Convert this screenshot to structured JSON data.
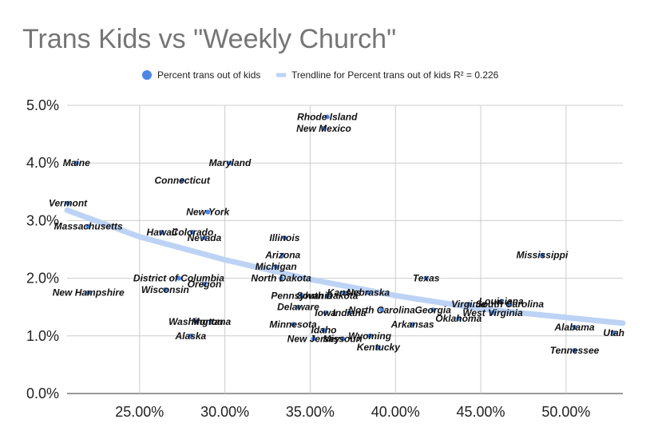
{
  "title": "Trans Kids vs \"Weekly Church\"",
  "legend": {
    "points_label": "Percent trans out of kids",
    "trend_label": "Trendline for Percent trans out of kids R² = 0.226"
  },
  "colors": {
    "points": "#4a86e8",
    "trend": "#bcd3f5",
    "title": "#757575"
  },
  "chart_data": {
    "type": "scatter",
    "title": "Trans Kids vs \"Weekly Church\"",
    "xlabel": "",
    "ylabel": "",
    "xlim": [
      0.2075,
      0.5333
    ],
    "ylim": [
      0,
      0.05
    ],
    "x_ticks": [
      0.25,
      0.3,
      0.35,
      0.4,
      0.45,
      0.5
    ],
    "x_tick_labels": [
      "25.00%",
      "30.00%",
      "35.00%",
      "40.00%",
      "45.00%",
      "50.00%"
    ],
    "y_ticks": [
      0,
      0.01,
      0.02,
      0.03,
      0.04,
      0.05
    ],
    "y_tick_labels": [
      "0.0%",
      "1.0%",
      "2.0%",
      "3.0%",
      "4.0%",
      "5.0%"
    ],
    "grid": true,
    "legend_position": "top",
    "series": [
      {
        "name": "Percent trans out of kids",
        "points": [
          {
            "label": "Rhode Island",
            "x": 0.36,
            "y": 0.048
          },
          {
            "label": "New Mexico",
            "x": 0.358,
            "y": 0.046
          },
          {
            "label": "Maine",
            "x": 0.213,
            "y": 0.04
          },
          {
            "label": "Maryland",
            "x": 0.303,
            "y": 0.04
          },
          {
            "label": "Connecticut",
            "x": 0.275,
            "y": 0.037
          },
          {
            "label": "Vermont",
            "x": 0.208,
            "y": 0.033
          },
          {
            "label": "New York",
            "x": 0.29,
            "y": 0.0315
          },
          {
            "label": "Massachusetts",
            "x": 0.22,
            "y": 0.029
          },
          {
            "label": "Hawaii",
            "x": 0.263,
            "y": 0.028
          },
          {
            "label": "Colorado",
            "x": 0.281,
            "y": 0.028
          },
          {
            "label": "Nevada",
            "x": 0.288,
            "y": 0.027
          },
          {
            "label": "Illinois",
            "x": 0.335,
            "y": 0.027
          },
          {
            "label": "Arizona",
            "x": 0.334,
            "y": 0.024
          },
          {
            "label": "Michigan",
            "x": 0.33,
            "y": 0.022
          },
          {
            "label": "Mississippi",
            "x": 0.486,
            "y": 0.024
          },
          {
            "label": "District of Columbia",
            "x": 0.273,
            "y": 0.02
          },
          {
            "label": "Oregon",
            "x": 0.288,
            "y": 0.019
          },
          {
            "label": "North Dakota",
            "x": 0.333,
            "y": 0.02
          },
          {
            "label": "Wisconsin",
            "x": 0.265,
            "y": 0.018
          },
          {
            "label": "New Hampshire",
            "x": 0.22,
            "y": 0.0175
          },
          {
            "label": "Texas",
            "x": 0.418,
            "y": 0.02
          },
          {
            "label": "Kansas",
            "x": 0.37,
            "y": 0.0175
          },
          {
            "label": "Nebraska",
            "x": 0.384,
            "y": 0.0175
          },
          {
            "label": "Pennsylvania",
            "x": 0.345,
            "y": 0.017
          },
          {
            "label": "South Dakota",
            "x": 0.36,
            "y": 0.017
          },
          {
            "label": "Louisiana",
            "x": 0.462,
            "y": 0.016
          },
          {
            "label": "Delaware",
            "x": 0.343,
            "y": 0.015
          },
          {
            "label": "Virginia",
            "x": 0.443,
            "y": 0.0155
          },
          {
            "label": "South Carolina",
            "x": 0.467,
            "y": 0.0155
          },
          {
            "label": "North Carolina",
            "x": 0.392,
            "y": 0.0145
          },
          {
            "label": "Georgia",
            "x": 0.422,
            "y": 0.0145
          },
          {
            "label": "Iowa",
            "x": 0.359,
            "y": 0.014
          },
          {
            "label": "Indiana",
            "x": 0.373,
            "y": 0.014
          },
          {
            "label": "West Virginia",
            "x": 0.457,
            "y": 0.014
          },
          {
            "label": "Oklahoma",
            "x": 0.437,
            "y": 0.013
          },
          {
            "label": "Washington",
            "x": 0.283,
            "y": 0.0125
          },
          {
            "label": "Montana",
            "x": 0.292,
            "y": 0.0125
          },
          {
            "label": "Arkansas",
            "x": 0.41,
            "y": 0.012
          },
          {
            "label": "Minnesota",
            "x": 0.34,
            "y": 0.012
          },
          {
            "label": "Alabama",
            "x": 0.505,
            "y": 0.0115
          },
          {
            "label": "Alaska",
            "x": 0.28,
            "y": 0.01
          },
          {
            "label": "Idaho",
            "x": 0.358,
            "y": 0.011
          },
          {
            "label": "Wyoming",
            "x": 0.385,
            "y": 0.01
          },
          {
            "label": "New Jersey",
            "x": 0.352,
            "y": 0.0095
          },
          {
            "label": "Utah",
            "x": 0.528,
            "y": 0.0105
          },
          {
            "label": "Missouri",
            "x": 0.369,
            "y": 0.0095
          },
          {
            "label": "Kentucky",
            "x": 0.39,
            "y": 0.008
          },
          {
            "label": "Tennessee",
            "x": 0.505,
            "y": 0.0075
          }
        ]
      },
      {
        "name": "Trendline for Percent trans out of kids R² = 0.226",
        "type": "trendline",
        "r_squared": 0.226,
        "x": [
          0.2075,
          0.25,
          0.3,
          0.35,
          0.4,
          0.45,
          0.5333
        ],
        "y": [
          0.0318,
          0.0272,
          0.0232,
          0.0198,
          0.017,
          0.0147,
          0.0122
        ]
      }
    ]
  }
}
